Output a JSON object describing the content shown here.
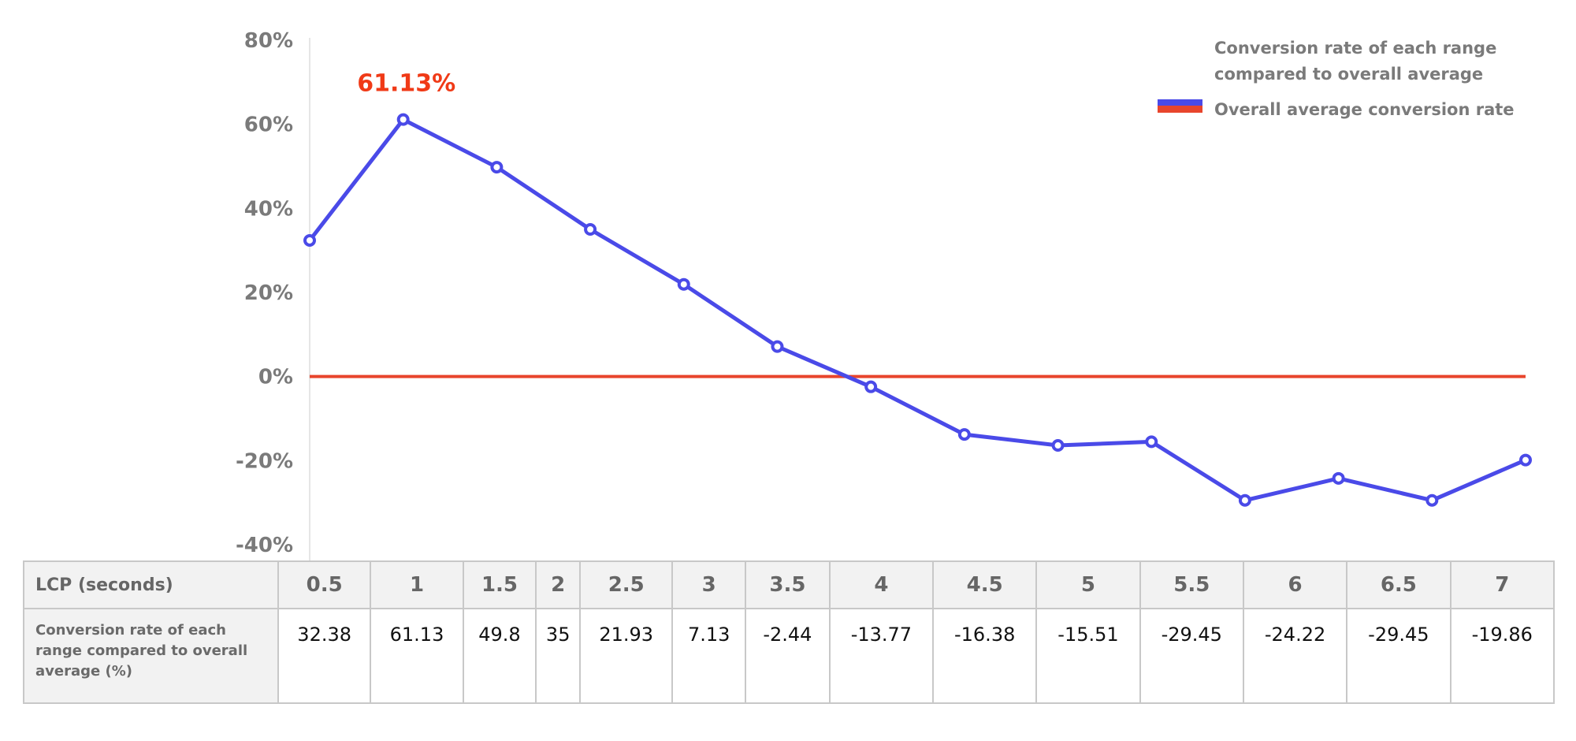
{
  "chart_data": {
    "type": "line",
    "x": [
      0.5,
      1,
      1.5,
      2,
      2.5,
      3,
      3.5,
      4,
      4.5,
      5,
      5.5,
      6,
      6.5,
      7
    ],
    "series": [
      {
        "name": "Conversion rate of each range compared to overall average",
        "color": "#4a4ae8",
        "values": [
          32.38,
          61.13,
          49.8,
          35,
          21.93,
          7.13,
          -2.44,
          -13.77,
          -16.38,
          -15.51,
          -29.45,
          -24.22,
          -29.45,
          -19.86
        ]
      },
      {
        "name": "Overall average conversion rate",
        "color": "#e8452c",
        "values": [
          0,
          0,
          0,
          0,
          0,
          0,
          0,
          0,
          0,
          0,
          0,
          0,
          0,
          0
        ]
      }
    ],
    "ylim": [
      -40,
      80
    ],
    "yticks": [
      "80%",
      "60%",
      "40%",
      "20%",
      "0%",
      "-20%",
      "-40%"
    ],
    "ytick_values": [
      80,
      60,
      40,
      20,
      0,
      -20,
      -40
    ],
    "annotation": {
      "text": "61.13%",
      "color": "#f03a17"
    },
    "legend_position": "top-right",
    "grid": false
  },
  "table": {
    "header_label": "LCP (seconds)",
    "header_values": [
      "0.5",
      "1",
      "1.5",
      "2",
      "2.5",
      "3",
      "3.5",
      "4",
      "4.5",
      "5",
      "5.5",
      "6",
      "6.5",
      "7"
    ],
    "row_label": "Conversion rate of each range compared to overall average (%)",
    "row_values": [
      "32.38",
      "61.13",
      "49.8",
      "35",
      "21.93",
      "7.13",
      "-2.44",
      "-13.77",
      "-16.38",
      "-15.51",
      "-29.45",
      "-24.22",
      "-29.45",
      "-19.86"
    ]
  }
}
